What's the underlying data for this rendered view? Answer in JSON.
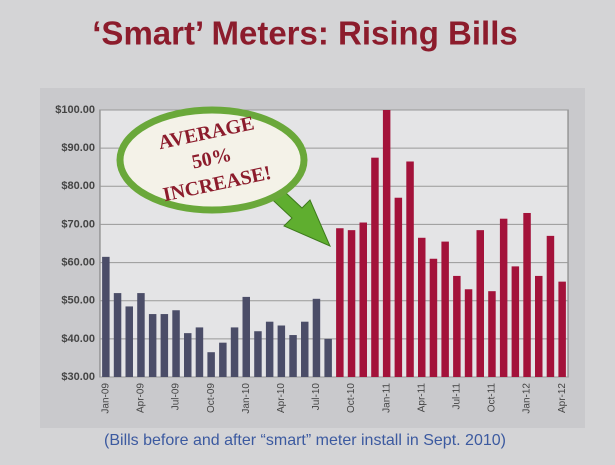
{
  "chart_data": {
    "type": "bar",
    "title": "‘Smart’ Meters: Rising Bills",
    "caption": "(Bills before and after “smart” meter install in Sept. 2010)",
    "annotation": [
      "AVERAGE",
      "50%",
      "INCREASE!"
    ],
    "categories": [
      "Jan-09",
      null,
      null,
      "Apr-09",
      null,
      null,
      "Jul-09",
      null,
      null,
      "Oct-09",
      null,
      null,
      "Jan-10",
      null,
      null,
      "Apr-10",
      null,
      null,
      "Jul-10",
      null,
      null,
      "Oct-10",
      null,
      null,
      "Jan-11",
      null,
      null,
      "Apr-11",
      null,
      null,
      "Jul-11",
      null,
      null,
      "Oct-11",
      null,
      null,
      "Jan-12",
      null,
      null,
      "Apr-12"
    ],
    "values": [
      61.5,
      52,
      48.5,
      52,
      46.5,
      46.5,
      47.5,
      41.5,
      43,
      36.5,
      39,
      43,
      51,
      42,
      44.5,
      43.5,
      41,
      44.5,
      50.5,
      40,
      69,
      68.5,
      70.5,
      87.5,
      100,
      77,
      86.5,
      66.5,
      61,
      65.5,
      56.5,
      53,
      68.5,
      52.5,
      71.5,
      59,
      73,
      56.5,
      67,
      55
    ],
    "colors": [
      "#4b4d68",
      "#4b4d68",
      "#4b4d68",
      "#4b4d68",
      "#4b4d68",
      "#4b4d68",
      "#4b4d68",
      "#4b4d68",
      "#4b4d68",
      "#4b4d68",
      "#4b4d68",
      "#4b4d68",
      "#4b4d68",
      "#4b4d68",
      "#4b4d68",
      "#4b4d68",
      "#4b4d68",
      "#4b4d68",
      "#4b4d68",
      "#4b4d68",
      "#a3123a",
      "#a3123a",
      "#a3123a",
      "#a3123a",
      "#a3123a",
      "#a3123a",
      "#a3123a",
      "#a3123a",
      "#a3123a",
      "#a3123a",
      "#a3123a",
      "#a3123a",
      "#a3123a",
      "#a3123a",
      "#a3123a",
      "#a3123a",
      "#a3123a",
      "#a3123a",
      "#a3123a",
      "#a3123a"
    ],
    "ylim": [
      30,
      100
    ],
    "yticks": [
      {
        "value": 30,
        "label": "$30.00"
      },
      {
        "value": 40,
        "label": "$40.00"
      },
      {
        "value": 50,
        "label": "$50.00"
      },
      {
        "value": 60,
        "label": "$60.00"
      },
      {
        "value": 70,
        "label": "$70.00"
      },
      {
        "value": 80,
        "label": "$80.00"
      },
      {
        "value": 90,
        "label": "$90.00"
      },
      {
        "value": 100,
        "label": "$100.00"
      }
    ],
    "grid": true
  }
}
